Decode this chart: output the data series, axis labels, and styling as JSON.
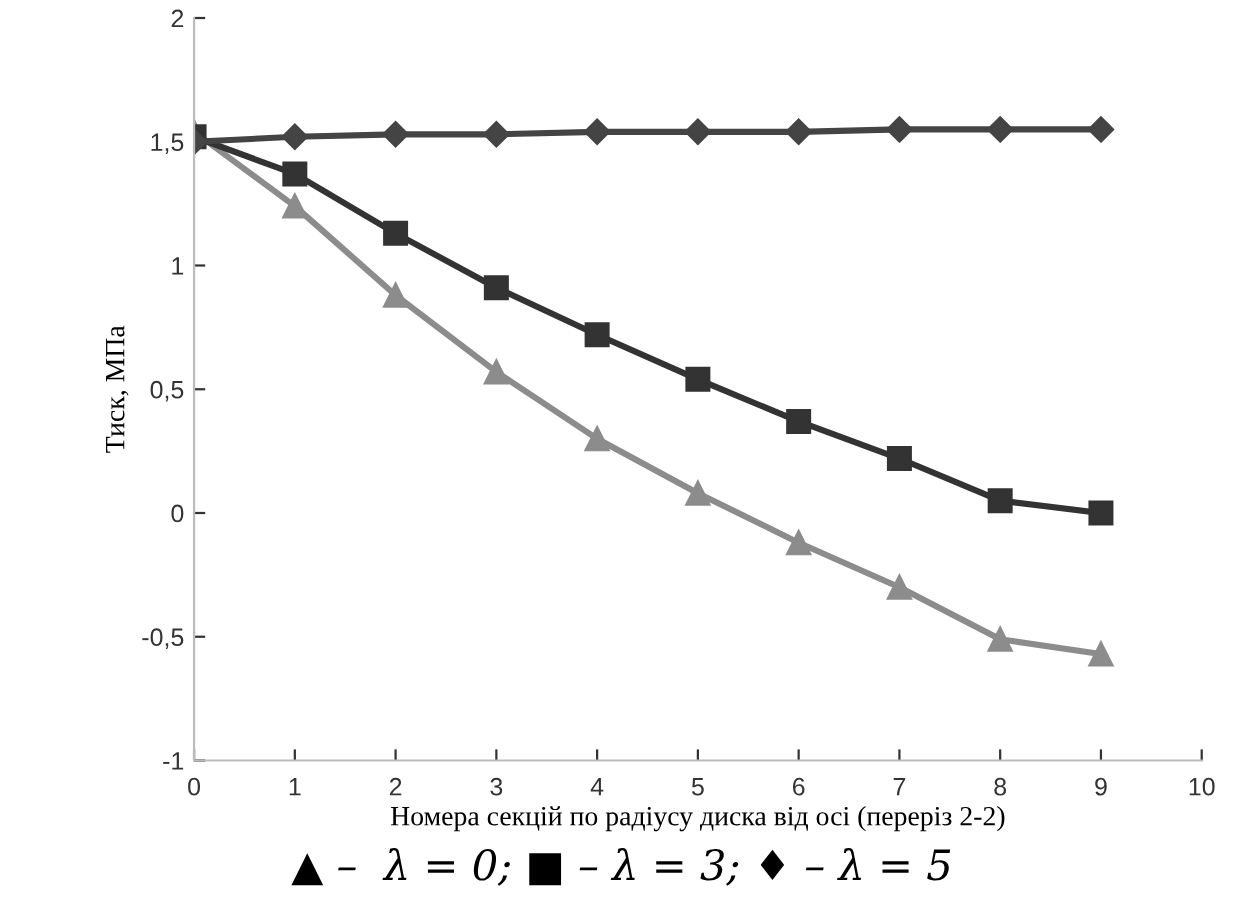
{
  "chart_data": {
    "type": "line",
    "xlabel": "Номера секцій по радіусу диска від осі (переріз 2-2)",
    "ylabel": "Тиск, МПа",
    "annotations": [
      "▲ –  λ = 0; ■ – λ = 3; ♦ – λ = 5"
    ],
    "x": [
      0,
      1,
      2,
      3,
      4,
      5,
      6,
      7,
      8,
      9
    ],
    "series": [
      {
        "color": "#8c8c8c",
        "marker": "triangle",
        "values": [
          1.54,
          1.24,
          0.88,
          0.57,
          0.3,
          0.08,
          -0.12,
          -0.3,
          -0.51,
          -0.57
        ]
      },
      {
        "color": "#333333",
        "marker": "square",
        "values": [
          1.52,
          1.37,
          1.13,
          0.91,
          0.72,
          0.54,
          0.37,
          0.22,
          0.05,
          0.0
        ]
      },
      {
        "color": "#444444",
        "marker": "diamond",
        "values": [
          1.5,
          1.52,
          1.53,
          1.53,
          1.54,
          1.54,
          1.54,
          1.55,
          1.55,
          1.55
        ]
      }
    ],
    "xlim": [
      0,
      10
    ],
    "xticks": [
      0,
      1,
      2,
      3,
      4,
      5,
      6,
      7,
      8,
      9,
      10
    ],
    "ylim": [
      -1,
      2
    ],
    "yticks": [
      -1,
      {
        "value": -0.5,
        "label": "-0,5"
      },
      0,
      {
        "value": 0.5,
        "label": "0,5"
      },
      1,
      {
        "value": 1.5,
        "label": "1,5"
      },
      2
    ],
    "grid": false,
    "legend": false,
    "line_style": "solid"
  }
}
